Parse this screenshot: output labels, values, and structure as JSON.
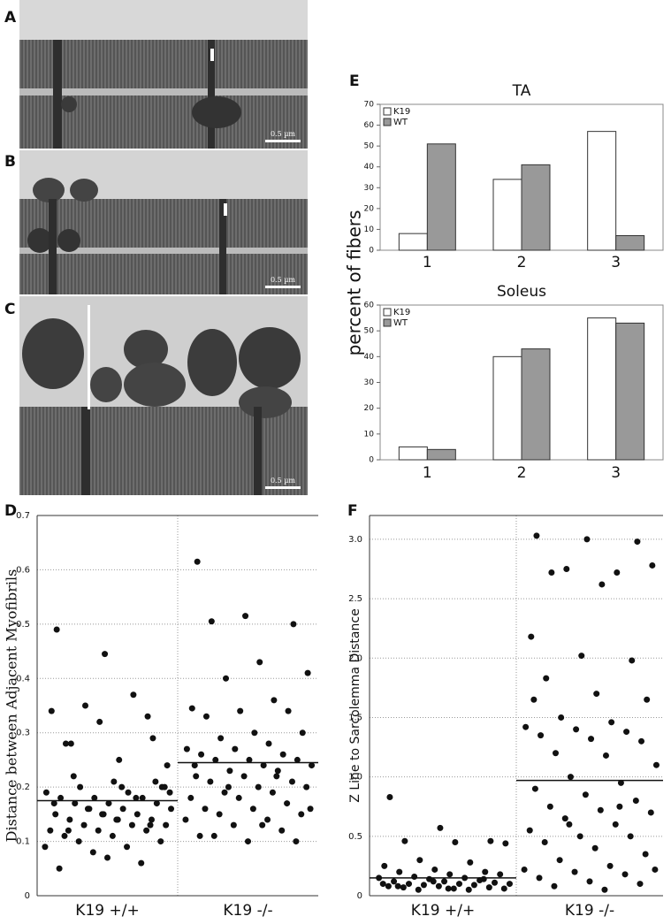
{
  "panels": [
    {
      "label": "A",
      "scale_bar": "0.5 µm"
    },
    {
      "label": "B",
      "scale_bar": "0.5 µm"
    },
    {
      "label": "C",
      "scale_bar": "0.5 µm"
    }
  ],
  "chart_data": [
    {
      "type": "bar",
      "panel_label": "E",
      "title": "TA",
      "ylabel": "percent of fibers",
      "categories": [
        "1",
        "2",
        "3"
      ],
      "series": [
        {
          "name": "K19",
          "color": "#ffffff",
          "values": [
            8,
            34,
            57
          ]
        },
        {
          "name": "WT",
          "color": "#999999",
          "values": [
            51,
            41,
            7
          ]
        }
      ],
      "ylim": [
        0,
        70
      ],
      "yticks": [
        0,
        10,
        20,
        30,
        40,
        50,
        60,
        70
      ],
      "legend": "top-left"
    },
    {
      "type": "bar",
      "title": "Soleus",
      "categories": [
        "1",
        "2",
        "3"
      ],
      "series": [
        {
          "name": "K19",
          "color": "#ffffff",
          "values": [
            5,
            40,
            55
          ]
        },
        {
          "name": "WT",
          "color": "#999999",
          "values": [
            4,
            43,
            53
          ]
        }
      ],
      "ylim": [
        0,
        60
      ],
      "yticks": [
        0,
        10,
        20,
        30,
        40,
        50,
        60
      ],
      "legend": "top-left"
    },
    {
      "type": "scatter",
      "panel_label": "D",
      "ylabel": "Distance between Adjacent  Myofibrils",
      "categories": [
        "K19 +/+",
        "K19 -/-"
      ],
      "series": [
        {
          "color": "#111111",
          "values": [
            0.49,
            0.445,
            0.29,
            0.28,
            0.25,
            0.24,
            0.35,
            0.37,
            0.34,
            0.32,
            0.33,
            0.28,
            0.21,
            0.2,
            0.2,
            0.19,
            0.19,
            0.18,
            0.18,
            0.18,
            0.17,
            0.17,
            0.17,
            0.16,
            0.16,
            0.16,
            0.15,
            0.15,
            0.15,
            0.14,
            0.14,
            0.14,
            0.13,
            0.13,
            0.13,
            0.12,
            0.12,
            0.12,
            0.11,
            0.11,
            0.1,
            0.1,
            0.09,
            0.09,
            0.08,
            0.06,
            0.05,
            0.07,
            0.21,
            0.22,
            0.2,
            0.19,
            0.16,
            0.18,
            0.17,
            0.15,
            0.13,
            0.12,
            0.14,
            0.2
          ]
        },
        {
          "color": "#111111",
          "values": [
            0.615,
            0.515,
            0.5,
            0.505,
            0.43,
            0.41,
            0.4,
            0.36,
            0.345,
            0.34,
            0.34,
            0.33,
            0.3,
            0.3,
            0.29,
            0.28,
            0.27,
            0.27,
            0.26,
            0.26,
            0.25,
            0.25,
            0.25,
            0.24,
            0.24,
            0.23,
            0.23,
            0.22,
            0.22,
            0.21,
            0.21,
            0.2,
            0.2,
            0.19,
            0.19,
            0.18,
            0.18,
            0.17,
            0.16,
            0.16,
            0.15,
            0.15,
            0.14,
            0.14,
            0.13,
            0.12,
            0.11,
            0.1,
            0.1,
            0.11,
            0.13,
            0.16,
            0.2,
            0.22,
            0.24
          ]
        }
      ],
      "means": [
        0.175,
        0.245
      ],
      "ylim": [
        0,
        0.7
      ],
      "yticks": [
        0,
        0.1,
        0.2,
        0.3,
        0.4,
        0.5,
        0.6,
        0.7
      ],
      "grid": true
    },
    {
      "type": "scatter",
      "panel_label": "F",
      "ylabel": "Z Line to Sarcolemma Distance",
      "categories": [
        "K19 +/+",
        "K19 -/-"
      ],
      "series": [
        {
          "color": "#111111",
          "values": [
            0.83,
            0.57,
            0.46,
            0.46,
            0.45,
            0.44,
            0.3,
            0.28,
            0.25,
            0.22,
            0.2,
            0.2,
            0.18,
            0.18,
            0.16,
            0.15,
            0.15,
            0.14,
            0.13,
            0.12,
            0.12,
            0.11,
            0.1,
            0.1,
            0.1,
            0.09,
            0.09,
            0.08,
            0.08,
            0.07,
            0.07,
            0.06,
            0.06,
            0.05,
            0.05,
            0.1,
            0.12,
            0.14,
            0.08,
            0.06
          ]
        },
        {
          "color": "#111111",
          "values": [
            3.03,
            3.0,
            2.98,
            2.72,
            2.62,
            2.78,
            2.75,
            2.72,
            2.18,
            2.02,
            1.98,
            1.83,
            1.7,
            1.65,
            1.5,
            1.46,
            1.42,
            1.4,
            1.38,
            1.35,
            1.32,
            1.3,
            1.2,
            1.18,
            1.1,
            1.0,
            0.95,
            0.9,
            0.85,
            0.8,
            0.75,
            0.72,
            0.7,
            0.65,
            0.6,
            0.55,
            0.5,
            0.5,
            0.45,
            0.4,
            0.35,
            0.3,
            0.25,
            0.22,
            0.2,
            0.18,
            0.15,
            0.12,
            0.1,
            0.08,
            0.05,
            0.22,
            0.6,
            0.75,
            1.65
          ]
        }
      ],
      "means": [
        0.15,
        0.97
      ],
      "ylim": [
        0,
        3.2
      ],
      "yticks": [
        0,
        0.5,
        {
          "value": 1,
          "label": "1.0"
        },
        1.5,
        {
          "value": 2,
          "label": "2.0"
        },
        2.5,
        {
          "value": 3,
          "label": "3.0"
        }
      ],
      "grid": true
    }
  ]
}
